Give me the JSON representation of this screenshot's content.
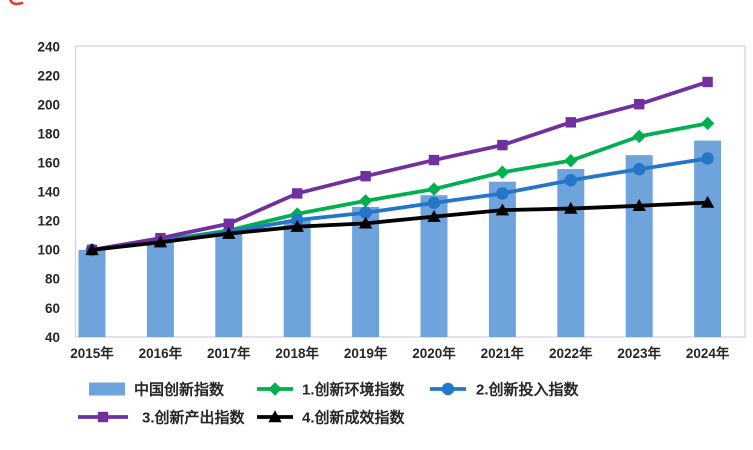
{
  "figure": {
    "red_mark_color": "#e23a2e"
  },
  "chart_data": {
    "type": "combo_bar_line",
    "title": "",
    "xlabel": "",
    "ylabel": "",
    "categories": [
      "2015年",
      "2016年",
      "2017年",
      "2018年",
      "2019年",
      "2020年",
      "2021年",
      "2022年",
      "2023年",
      "2024年"
    ],
    "ylim": [
      40,
      240
    ],
    "ytick_step": 20,
    "grid": false,
    "legend_position": "bottom",
    "axis_text_color": "#262626",
    "plot_border_color": "#d6d6e6",
    "series": [
      {
        "name": "中国创新指数",
        "type": "bar",
        "marker": "bar-swatch",
        "color": "#6fa3dc",
        "values": [
          100,
          106.1,
          112.9,
          120.4,
          129.6,
          137.7,
          147.0,
          155.7,
          165.3,
          175.3
        ]
      },
      {
        "name": "1.创新环境指数",
        "type": "line",
        "marker": "diamond",
        "color": "#00b050",
        "values": [
          100,
          106.4,
          113.4,
          124.8,
          133.8,
          141.9,
          153.5,
          161.5,
          178.2,
          187.2
        ]
      },
      {
        "name": "2.创新投入指数",
        "type": "line",
        "marker": "circle",
        "color": "#2377c6",
        "values": [
          100,
          106.0,
          112.4,
          120.6,
          125.6,
          132.4,
          138.9,
          148.0,
          155.6,
          163.0
        ]
      },
      {
        "name": "3.创新产出指数",
        "type": "line",
        "marker": "square",
        "color": "#7030a0",
        "values": [
          100,
          108.1,
          118.0,
          138.9,
          150.8,
          161.9,
          172.2,
          187.9,
          200.4,
          215.7
        ]
      },
      {
        "name": "4.创新成效指数",
        "type": "line",
        "marker": "triangle",
        "color": "#000000",
        "values": [
          100,
          105.3,
          111.2,
          116.0,
          118.3,
          122.9,
          127.4,
          128.5,
          130.4,
          132.6
        ]
      }
    ],
    "legend_rows": [
      [
        0,
        1,
        2
      ],
      [
        3,
        4
      ]
    ]
  }
}
